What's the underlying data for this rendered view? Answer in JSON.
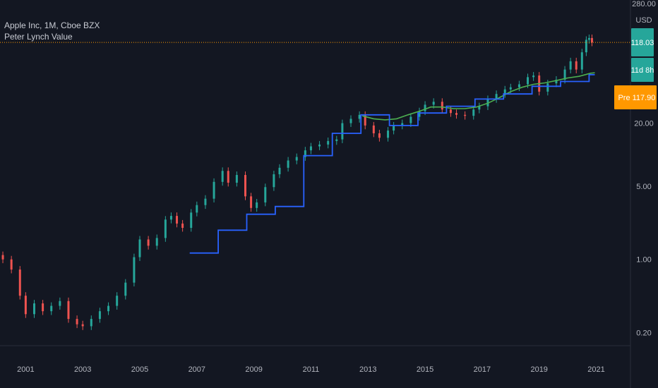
{
  "header": {
    "symbol_line": "Apple Inc, 1M, Cboe BZX",
    "indicator_line": "Peter Lynch Value"
  },
  "axis": {
    "currency": "USD",
    "top_clipped_label": "280.00"
  },
  "tags": {
    "last_price": "118.03",
    "countdown": "11d 8h",
    "pre_label": "Pre",
    "pre_price": "117.90"
  },
  "colors": {
    "background": "#131722",
    "up": "#26a69a",
    "down": "#ef5350",
    "lynch_line": "#2962ff",
    "green_line": "#4caf50",
    "last_price_line": "#ff9800",
    "teal_tag": "#26a69a",
    "pre_tag": "#ff9800",
    "grid": "#2a2e39"
  },
  "chart_data": {
    "type": "line",
    "title": "Apple Inc, 1M, Cboe BZX",
    "xlabel": "",
    "ylabel": "",
    "y_scale": "log",
    "ylim": [
      0.15,
      300
    ],
    "xlim": [
      2000.1,
      2022.2
    ],
    "y_ticks": [
      0.2,
      1,
      5,
      20
    ],
    "y_tick_labels": [
      "0.20",
      "1.00",
      "5.00",
      "20.00"
    ],
    "x_ticks": [
      2001,
      2003,
      2005,
      2007,
      2009,
      2011,
      2013,
      2015,
      2017,
      2019,
      2021
    ],
    "x_tick_labels": [
      "2001",
      "2003",
      "2005",
      "2007",
      "2009",
      "2011",
      "2013",
      "2015",
      "2017",
      "2019",
      "2021"
    ],
    "grid": false,
    "series": [
      {
        "name": "Apple Inc",
        "kind": "candlestick-close",
        "points": [
          [
            2000.2,
            1.0
          ],
          [
            2000.5,
            0.8
          ],
          [
            2000.8,
            0.45
          ],
          [
            2001.0,
            0.3
          ],
          [
            2001.3,
            0.38
          ],
          [
            2001.6,
            0.32
          ],
          [
            2001.9,
            0.36
          ],
          [
            2002.2,
            0.4
          ],
          [
            2002.5,
            0.27
          ],
          [
            2002.8,
            0.24
          ],
          [
            2003.0,
            0.23
          ],
          [
            2003.3,
            0.27
          ],
          [
            2003.6,
            0.32
          ],
          [
            2003.9,
            0.36
          ],
          [
            2004.2,
            0.45
          ],
          [
            2004.5,
            0.6
          ],
          [
            2004.8,
            1.05
          ],
          [
            2005.0,
            1.55
          ],
          [
            2005.3,
            1.35
          ],
          [
            2005.6,
            1.6
          ],
          [
            2005.9,
            2.4
          ],
          [
            2006.1,
            2.6
          ],
          [
            2006.3,
            2.2
          ],
          [
            2006.5,
            2.0
          ],
          [
            2006.8,
            2.8
          ],
          [
            2007.0,
            3.3
          ],
          [
            2007.3,
            3.8
          ],
          [
            2007.6,
            5.5
          ],
          [
            2007.9,
            7.0
          ],
          [
            2008.1,
            5.4
          ],
          [
            2008.4,
            6.4
          ],
          [
            2008.7,
            4.0
          ],
          [
            2008.9,
            3.1
          ],
          [
            2009.1,
            3.5
          ],
          [
            2009.4,
            4.9
          ],
          [
            2009.7,
            6.5
          ],
          [
            2009.9,
            7.5
          ],
          [
            2010.2,
            8.8
          ],
          [
            2010.5,
            9.5
          ],
          [
            2010.8,
            11.0
          ],
          [
            2011.0,
            12.0
          ],
          [
            2011.3,
            12.5
          ],
          [
            2011.6,
            13.5
          ],
          [
            2011.9,
            14.0
          ],
          [
            2012.1,
            20.0
          ],
          [
            2012.4,
            22.0
          ],
          [
            2012.7,
            24.0
          ],
          [
            2012.9,
            19.0
          ],
          [
            2013.2,
            16.0
          ],
          [
            2013.4,
            14.5
          ],
          [
            2013.7,
            17.0
          ],
          [
            2013.9,
            19.0
          ],
          [
            2014.2,
            20.0
          ],
          [
            2014.5,
            23.0
          ],
          [
            2014.8,
            26.0
          ],
          [
            2015.0,
            30.0
          ],
          [
            2015.3,
            32.0
          ],
          [
            2015.6,
            27.0
          ],
          [
            2015.9,
            25.0
          ],
          [
            2016.1,
            24.0
          ],
          [
            2016.4,
            23.5
          ],
          [
            2016.7,
            27.0
          ],
          [
            2016.9,
            29.0
          ],
          [
            2017.2,
            34.0
          ],
          [
            2017.5,
            38.0
          ],
          [
            2017.8,
            42.0
          ],
          [
            2018.0,
            44.0
          ],
          [
            2018.3,
            47.0
          ],
          [
            2018.6,
            55.0
          ],
          [
            2018.8,
            57.0
          ],
          [
            2019.0,
            40.0
          ],
          [
            2019.3,
            48.0
          ],
          [
            2019.6,
            52.0
          ],
          [
            2019.9,
            65.0
          ],
          [
            2020.1,
            78.0
          ],
          [
            2020.3,
            65.0
          ],
          [
            2020.5,
            95.0
          ],
          [
            2020.65,
            125.0
          ],
          [
            2020.75,
            130.0
          ],
          [
            2020.85,
            118.03
          ]
        ]
      },
      {
        "name": "Peter Lynch Value",
        "kind": "step",
        "points": [
          [
            2006.75,
            1.15
          ],
          [
            2007.75,
            1.15
          ],
          [
            2007.75,
            1.9
          ],
          [
            2008.75,
            1.9
          ],
          [
            2008.75,
            2.7
          ],
          [
            2009.75,
            2.7
          ],
          [
            2009.75,
            3.2
          ],
          [
            2010.75,
            3.2
          ],
          [
            2010.75,
            9.8
          ],
          [
            2011.75,
            9.8
          ],
          [
            2011.75,
            16.0
          ],
          [
            2012.75,
            16.0
          ],
          [
            2012.75,
            24.0
          ],
          [
            2013.75,
            24.0
          ],
          [
            2013.75,
            19.0
          ],
          [
            2014.75,
            19.0
          ],
          [
            2014.75,
            25.0
          ],
          [
            2015.75,
            25.0
          ],
          [
            2015.75,
            29.0
          ],
          [
            2016.75,
            29.0
          ],
          [
            2016.75,
            34.0
          ],
          [
            2017.75,
            34.0
          ],
          [
            2017.75,
            38.0
          ],
          [
            2018.75,
            38.0
          ],
          [
            2018.75,
            45.0
          ],
          [
            2019.75,
            45.0
          ],
          [
            2019.75,
            50.0
          ],
          [
            2020.75,
            50.0
          ],
          [
            2020.75,
            58.0
          ],
          [
            2020.95,
            58.0
          ]
        ]
      },
      {
        "name": "",
        "kind": "line",
        "points": [
          [
            2012.8,
            23.5
          ],
          [
            2013.2,
            22.0
          ],
          [
            2013.6,
            21.5
          ],
          [
            2014.0,
            22.0
          ],
          [
            2014.4,
            24.0
          ],
          [
            2014.8,
            26.0
          ],
          [
            2015.2,
            28.5
          ],
          [
            2015.6,
            28.5
          ],
          [
            2016.0,
            27.5
          ],
          [
            2016.4,
            27.5
          ],
          [
            2016.8,
            28.5
          ],
          [
            2017.2,
            31.0
          ],
          [
            2017.6,
            35.0
          ],
          [
            2018.0,
            40.0
          ],
          [
            2018.4,
            44.0
          ],
          [
            2018.8,
            47.0
          ],
          [
            2019.2,
            48.5
          ],
          [
            2019.6,
            51.0
          ],
          [
            2020.0,
            54.0
          ],
          [
            2020.4,
            56.0
          ],
          [
            2020.8,
            60.0
          ],
          [
            2020.95,
            60.5
          ]
        ]
      }
    ],
    "annotations": {
      "last_price": 118.03,
      "pre_market_price": 117.9,
      "countdown": "11d 8h"
    }
  }
}
